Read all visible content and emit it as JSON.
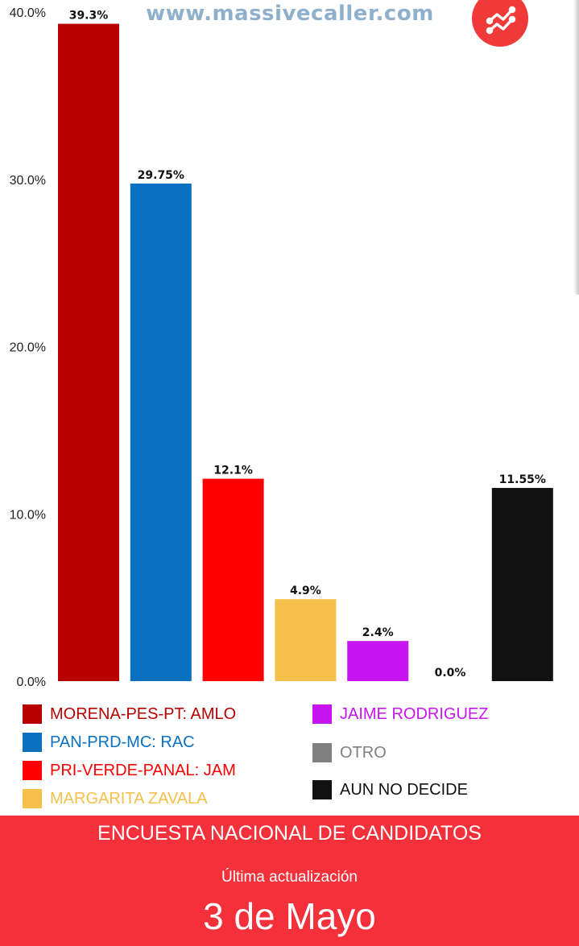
{
  "watermark": "www.massivecaller.com",
  "logo_icon": "trend-lines-icon",
  "chart_data": {
    "type": "bar",
    "categories": [
      "MORENA-PES-PT: AMLO",
      "PAN-PRD-MC: RAC",
      "PRI-VERDE-PANAL: JAM",
      "MARGARITA ZAVALA",
      "JAIME RODRIGUEZ",
      "OTRO",
      "AUN NO DECIDE"
    ],
    "values": [
      39.3,
      29.75,
      12.1,
      4.9,
      2.4,
      0.0,
      11.55
    ],
    "value_labels": [
      "39.3%",
      "29.75%",
      "12.1%",
      "4.9%",
      "2.4%",
      "0.0%",
      "11.55%"
    ],
    "colors": [
      "#b80000",
      "#0a70c0",
      "#ff0000",
      "#f5c04a",
      "#c814f0",
      "#808080",
      "#111111"
    ],
    "ylim": [
      0,
      40
    ],
    "yticks": [
      0,
      10,
      20,
      30,
      40
    ],
    "ytick_labels": [
      "0.0%",
      "10.0%",
      "20.0%",
      "30.0%",
      "40.0%"
    ],
    "legend": [
      {
        "label": "MORENA-PES-PT: AMLO",
        "color": "#b80000",
        "text_color": "#b80000"
      },
      {
        "label": "PAN-PRD-MC: RAC",
        "color": "#0a70c0",
        "text_color": "#0a70c0"
      },
      {
        "label": "PRI-VERDE-PANAL: JAM",
        "color": "#ff0000",
        "text_color": "#ff0000"
      },
      {
        "label": "MARGARITA ZAVALA",
        "color": "#f5c04a",
        "text_color": "#f5c04a"
      },
      {
        "label": "JAIME RODRIGUEZ",
        "color": "#c814f0",
        "text_color": "#c814f0"
      },
      {
        "label": "OTRO",
        "color": "#808080",
        "text_color": "#808080"
      },
      {
        "label": "AUN NO DECIDE",
        "color": "#111111",
        "text_color": "#111111"
      }
    ],
    "legend_placement": "bottom",
    "grid": false
  },
  "footer": {
    "title": "ENCUESTA NACIONAL DE CANDIDATOS",
    "subtitle": "Última actualización",
    "date": "3 de Mayo",
    "background": "#f4303a"
  }
}
